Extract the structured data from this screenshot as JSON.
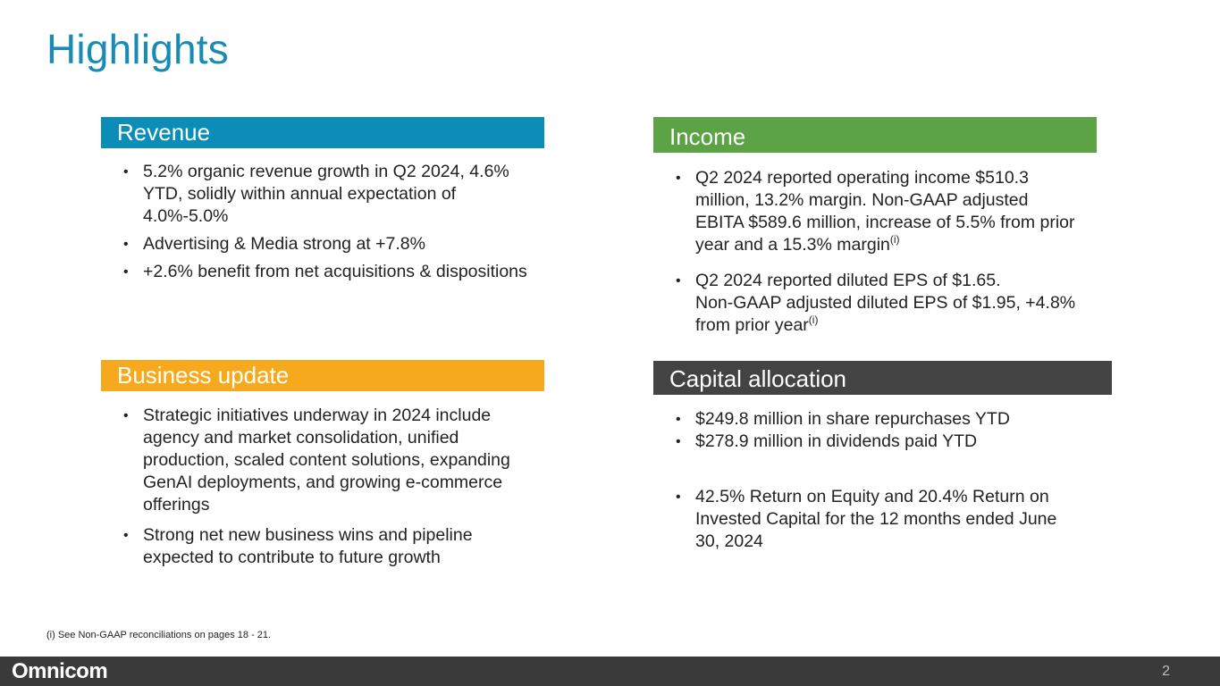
{
  "title": "Highlights",
  "revenue": {
    "header": "Revenue",
    "bullets": [
      "5.2% organic revenue growth in Q2 2024, 4.6% YTD, solidly within annual expectation of 4.0%-5.0%",
      "Advertising & Media strong at +7.8%",
      "+2.6% benefit from net acquisitions & dispositions"
    ]
  },
  "income": {
    "header": "Income",
    "bullet1": "Q2 2024 reported operating income $510.3 million, 13.2% margin. Non-GAAP adjusted EBITA $589.6 million, increase of 5.5% from prior year and a 15.3% margin",
    "bullet2_line1": "Q2 2024 reported diluted EPS of $1.65.",
    "bullet2_line2": "Non-GAAP adjusted diluted EPS of $1.95, +4.8% from prior year",
    "note_marker": "(i)"
  },
  "business": {
    "header": "Business update",
    "bullets": [
      "Strategic initiatives underway in 2024 include agency and market consolidation, unified production, scaled content solutions, expanding GenAI deployments, and growing e-commerce offerings",
      "Strong net new business wins and pipeline expected to contribute to future growth"
    ]
  },
  "capital": {
    "header": "Capital allocation",
    "bullets": [
      "$249.8 million in share repurchases YTD",
      "$278.9 million in dividends paid YTD",
      "42.5% Return on Equity and 20.4% Return on Invested Capital for the 12 months ended June 30, 2024"
    ]
  },
  "footnote": "(i)  See Non-GAAP reconciliations on pages 18 - 21.",
  "footer": {
    "logo": "Omnicom",
    "page_number": "2"
  },
  "colors": {
    "title": "#1a8bb5",
    "revenue": "#0b8db8",
    "income": "#5ba344",
    "business": "#f7a91d",
    "capital": "#434343",
    "footer": "#3a3a3a"
  }
}
